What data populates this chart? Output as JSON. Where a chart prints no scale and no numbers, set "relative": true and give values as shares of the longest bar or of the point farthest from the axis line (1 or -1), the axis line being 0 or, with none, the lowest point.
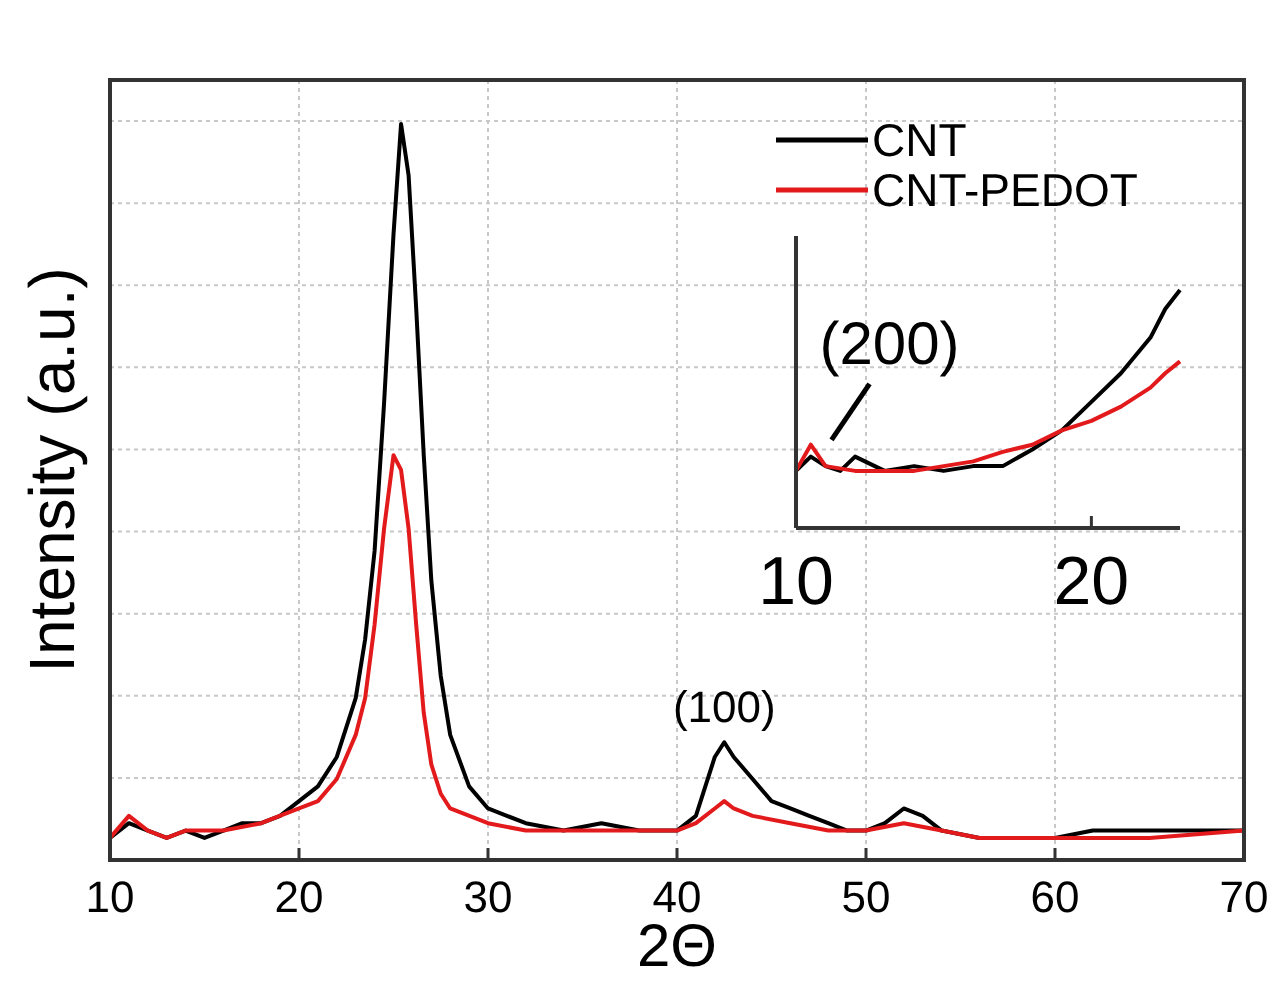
{
  "chart_data": [
    {
      "type": "line",
      "relative": true,
      "xlabel": "2Θ",
      "ylabel": "Intensity (a.u.)",
      "xlim": [
        10,
        70
      ],
      "xticks": [
        10,
        20,
        30,
        40,
        50,
        60,
        70
      ],
      "grid": true,
      "legend": "top right",
      "line_style": "solid",
      "marker": "none",
      "annotations": [
        {
          "text": "(100)",
          "x": 42.5,
          "y": 0.16
        }
      ],
      "series": [
        {
          "name": "CNT",
          "color": "#000000",
          "x": [
            10,
            11,
            12,
            13,
            14,
            15,
            16,
            17,
            18,
            19,
            20,
            21,
            22,
            23,
            23.5,
            24,
            24.5,
            25,
            25.4,
            25.8,
            26.2,
            26.6,
            27,
            27.5,
            28,
            29,
            30,
            31,
            32,
            34,
            36,
            38,
            40,
            41,
            41.5,
            42,
            42.5,
            43,
            44,
            45,
            46,
            47,
            48,
            49,
            50,
            51,
            52,
            53,
            54,
            56,
            58,
            60,
            62,
            64,
            66,
            68,
            70
          ],
          "values": [
            0.03,
            0.05,
            0.04,
            0.03,
            0.04,
            0.03,
            0.04,
            0.05,
            0.05,
            0.06,
            0.08,
            0.1,
            0.14,
            0.22,
            0.3,
            0.42,
            0.62,
            0.85,
            1,
            0.93,
            0.75,
            0.55,
            0.38,
            0.25,
            0.17,
            0.1,
            0.07,
            0.06,
            0.05,
            0.04,
            0.05,
            0.04,
            0.04,
            0.06,
            0.1,
            0.14,
            0.16,
            0.14,
            0.11,
            0.08,
            0.07,
            0.06,
            0.05,
            0.04,
            0.04,
            0.05,
            0.07,
            0.06,
            0.04,
            0.03,
            0.03,
            0.03,
            0.04,
            0.04,
            0.04,
            0.04,
            0.04
          ]
        },
        {
          "name": "CNT-PEDOT",
          "color": "#e31a1c",
          "x": [
            10,
            11,
            12,
            13,
            14,
            16,
            18,
            20,
            21,
            22,
            23,
            23.5,
            24,
            24.5,
            25,
            25.4,
            25.8,
            26.2,
            26.6,
            27,
            27.5,
            28,
            30,
            32,
            35,
            38,
            40,
            41,
            42,
            42.5,
            43,
            44,
            46,
            48,
            50,
            52,
            54,
            56,
            60,
            65,
            70
          ],
          "values": [
            0.03,
            0.06,
            0.04,
            0.03,
            0.04,
            0.04,
            0.05,
            0.07,
            0.08,
            0.11,
            0.17,
            0.22,
            0.32,
            0.45,
            0.55,
            0.53,
            0.45,
            0.32,
            0.2,
            0.13,
            0.09,
            0.07,
            0.05,
            0.04,
            0.04,
            0.04,
            0.04,
            0.05,
            0.07,
            0.08,
            0.07,
            0.06,
            0.05,
            0.04,
            0.04,
            0.05,
            0.04,
            0.03,
            0.03,
            0.03,
            0.04
          ]
        }
      ]
    },
    {
      "type": "line",
      "relative": true,
      "xlim": [
        10,
        23
      ],
      "xticks": [
        10,
        20
      ],
      "line_style": "solid",
      "marker": "none",
      "annotations": [
        {
          "text": "(200)",
          "x": 11,
          "y": 0.32
        }
      ],
      "series": [
        {
          "color": "#000000",
          "x": [
            10,
            10.5,
            11,
            11.5,
            12,
            13,
            14,
            15,
            16,
            17,
            18,
            19,
            20,
            21,
            22,
            22.5,
            23
          ],
          "values": [
            0.24,
            0.3,
            0.26,
            0.24,
            0.3,
            0.24,
            0.26,
            0.24,
            0.26,
            0.26,
            0.33,
            0.41,
            0.53,
            0.65,
            0.8,
            0.92,
            1
          ]
        },
        {
          "color": "#e31a1c",
          "x": [
            10,
            10.5,
            11,
            12,
            13,
            14,
            15,
            16,
            17,
            18,
            19,
            20,
            21,
            22,
            22.5,
            23
          ],
          "values": [
            0.24,
            0.35,
            0.26,
            0.24,
            0.24,
            0.24,
            0.26,
            0.28,
            0.32,
            0.35,
            0.41,
            0.45,
            0.51,
            0.59,
            0.65,
            0.7
          ]
        }
      ]
    }
  ]
}
